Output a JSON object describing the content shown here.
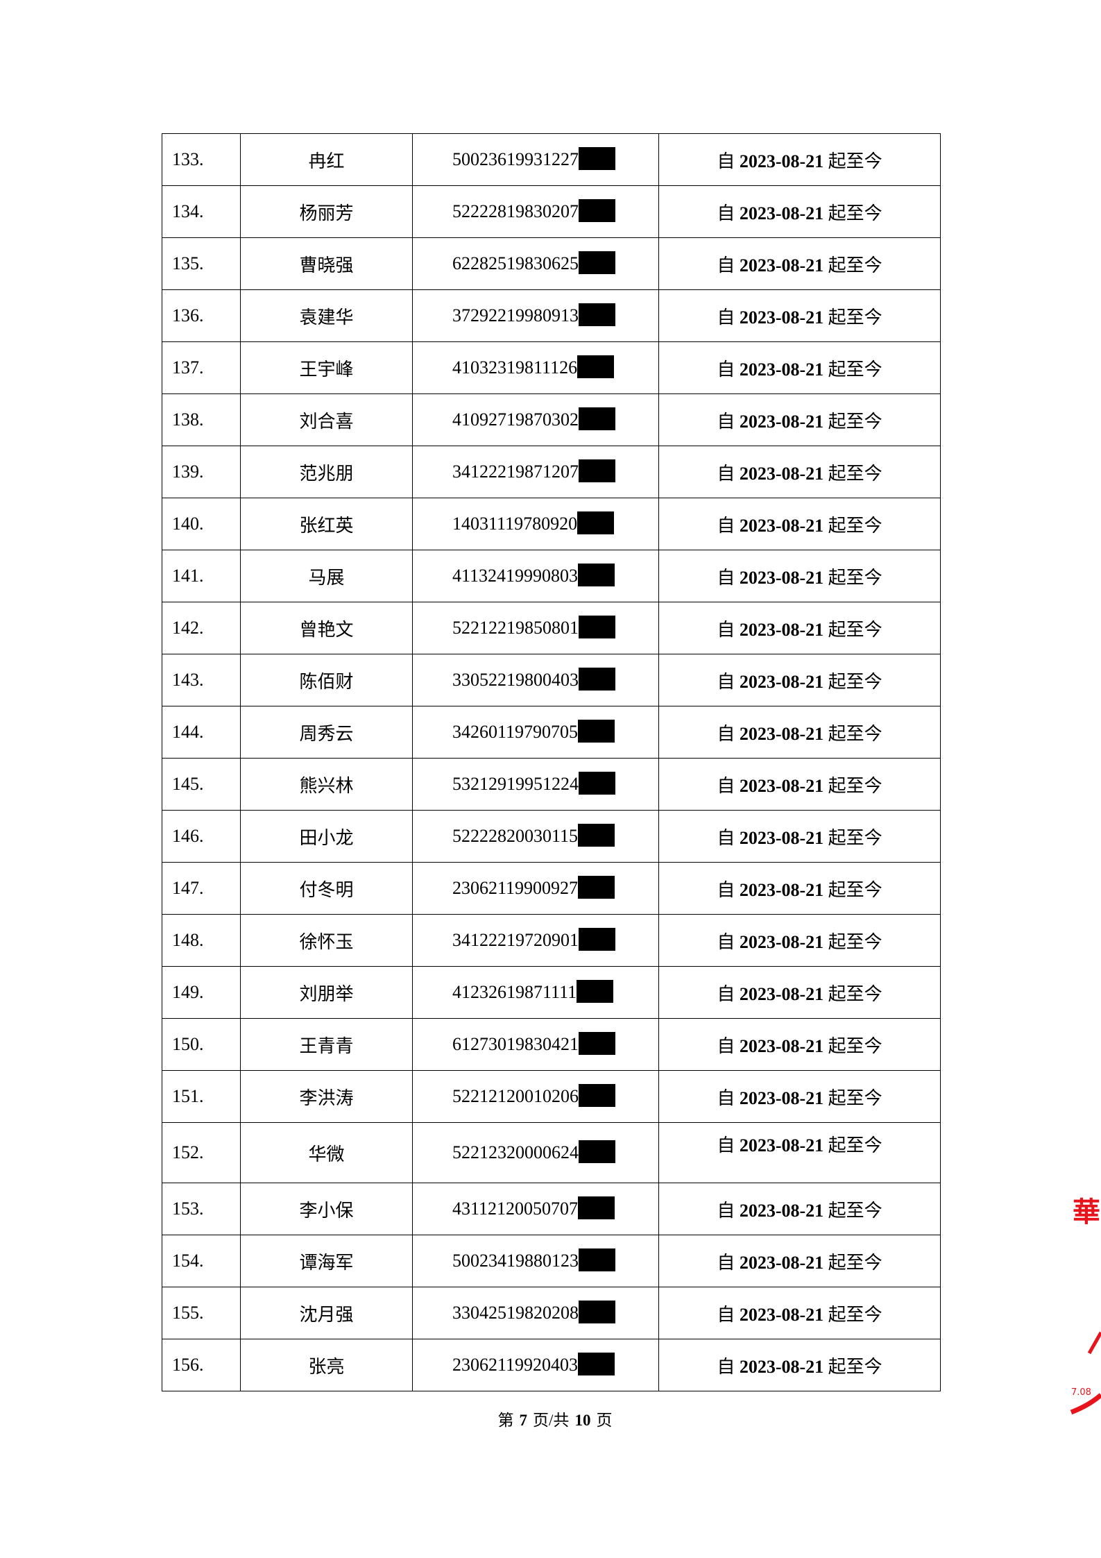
{
  "table": {
    "date_prefix": "自",
    "date_suffix": "起至今",
    "rows": [
      {
        "no": "133.",
        "name": "冉红",
        "id": "50023619931227",
        "date": "2023-08-21"
      },
      {
        "no": "134.",
        "name": "杨丽芳",
        "id": "52222819830207",
        "date": "2023-08-21"
      },
      {
        "no": "135.",
        "name": "曹晓强",
        "id": "62282519830625",
        "date": "2023-08-21"
      },
      {
        "no": "136.",
        "name": "袁建华",
        "id": "37292219980913",
        "date": "2023-08-21"
      },
      {
        "no": "137.",
        "name": "王宇峰",
        "id": "41032319811126",
        "date": "2023-08-21"
      },
      {
        "no": "138.",
        "name": "刘合喜",
        "id": "41092719870302",
        "date": "2023-08-21"
      },
      {
        "no": "139.",
        "name": "范兆朋",
        "id": "34122219871207",
        "date": "2023-08-21"
      },
      {
        "no": "140.",
        "name": "张红英",
        "id": "14031119780920",
        "date": "2023-08-21"
      },
      {
        "no": "141.",
        "name": "马展",
        "id": "41132419990803",
        "date": "2023-08-21"
      },
      {
        "no": "142.",
        "name": "曾艳文",
        "id": "52212219850801",
        "date": "2023-08-21"
      },
      {
        "no": "143.",
        "name": "陈佰财",
        "id": "33052219800403",
        "date": "2023-08-21"
      },
      {
        "no": "144.",
        "name": "周秀云",
        "id": "34260119790705",
        "date": "2023-08-21"
      },
      {
        "no": "145.",
        "name": "熊兴林",
        "id": "53212919951224",
        "date": "2023-08-21"
      },
      {
        "no": "146.",
        "name": "田小龙",
        "id": "52222820030115",
        "date": "2023-08-21"
      },
      {
        "no": "147.",
        "name": "付冬明",
        "id": "23062119900927",
        "date": "2023-08-21"
      },
      {
        "no": "148.",
        "name": "徐怀玉",
        "id": "34122219720901",
        "date": "2023-08-21"
      },
      {
        "no": "149.",
        "name": "刘朋举",
        "id": "41232619871111",
        "date": "2023-08-21"
      },
      {
        "no": "150.",
        "name": "王青青",
        "id": "61273019830421",
        "date": "2023-08-21"
      },
      {
        "no": "151.",
        "name": "李洪涛",
        "id": "52212120010206",
        "date": "2023-08-21"
      },
      {
        "no": "152.",
        "name": "华微",
        "id": "52212320000624",
        "date": "2023-08-21",
        "date_top": true
      },
      {
        "no": "153.",
        "name": "李小保",
        "id": "43112120050707",
        "date": "2023-08-21"
      },
      {
        "no": "154.",
        "name": "谭海军",
        "id": "50023419880123",
        "date": "2023-08-21"
      },
      {
        "no": "155.",
        "name": "沈月强",
        "id": "33042519820208",
        "date": "2023-08-21"
      },
      {
        "no": "156.",
        "name": "张亮",
        "id": "23062119920403",
        "date": "2023-08-21"
      }
    ]
  },
  "footer": {
    "prefix": "第",
    "page": "7",
    "middle": "页/共",
    "total": "10",
    "suffix": "页"
  },
  "seal": {
    "color": "#e8141c",
    "visible_text": "7.08"
  }
}
